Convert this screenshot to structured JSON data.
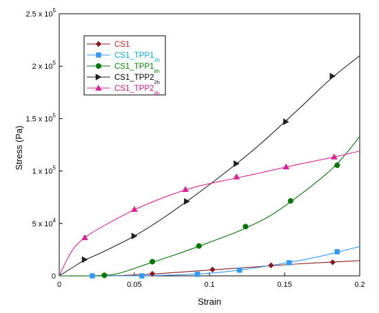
{
  "chart_data": {
    "type": "line",
    "title": "",
    "xlabel": "Strain",
    "ylabel": "Stress (Pa)",
    "xlim": [
      0,
      0.2
    ],
    "ylim": [
      0,
      250000
    ],
    "grid": false,
    "legend_position": "top-left",
    "x_ticks": [
      {
        "value": 0,
        "label": "0"
      },
      {
        "value": 0.05,
        "label": "0.05"
      },
      {
        "value": 0.1,
        "label": "0.1"
      },
      {
        "value": 0.15,
        "label": "0.15"
      },
      {
        "value": 0.2,
        "label": "0.2"
      }
    ],
    "y_ticks": [
      {
        "value": 0,
        "label": "0",
        "mantissa": "",
        "exp": ""
      },
      {
        "value": 50000,
        "label": "5 x 10",
        "mantissa": "5 x 10",
        "exp": "4"
      },
      {
        "value": 100000,
        "label": "1 x 10",
        "mantissa": "1 x 10",
        "exp": "5"
      },
      {
        "value": 150000,
        "label": "1.5 x 10",
        "mantissa": "1.5 x 10",
        "exp": "5"
      },
      {
        "value": 200000,
        "label": "2 x 10",
        "mantissa": "2 x 10",
        "exp": "5"
      },
      {
        "value": 250000,
        "label": "2.5 x 10",
        "mantissa": "2.5 x 10",
        "exp": "5"
      }
    ],
    "series": [
      {
        "name": "CS1",
        "name_main": "CS1",
        "name_sub": "",
        "color": "#8b1a1a",
        "text_color": "#d42020",
        "marker": "diamond",
        "curve_x": [
          0,
          0.02,
          0.04,
          0.06,
          0.08,
          0.1,
          0.12,
          0.14,
          0.16,
          0.18,
          0.2
        ],
        "curve_y": [
          0,
          0,
          300,
          1500,
          3500,
          5500,
          7500,
          9500,
          11500,
          13000,
          14500
        ],
        "marker_x": [
          0.03,
          0.062,
          0.102,
          0.141,
          0.182
        ],
        "marker_y": [
          500,
          2000,
          6000,
          10000,
          13000
        ]
      },
      {
        "name": "CS1_TPP1 2h",
        "name_main": "CS1_TPP1",
        "name_sub": "2h",
        "color": "#3399ff",
        "text_color": "#00aadd",
        "marker": "square",
        "curve_x": [
          0,
          0.04,
          0.07,
          0.1,
          0.12,
          0.15,
          0.17,
          0.185,
          0.2
        ],
        "curve_y": [
          0,
          0,
          500,
          2500,
          5500,
          12000,
          17500,
          22500,
          28000
        ],
        "marker_x": [
          0.022,
          0.055,
          0.092,
          0.12,
          0.153,
          0.185
        ],
        "marker_y": [
          0,
          0,
          1500,
          5500,
          12500,
          23000
        ]
      },
      {
        "name": "CS1_TPP1 8h",
        "name_main": "CS1_TPP1",
        "name_sub": "8h",
        "color": "#007700",
        "text_color": "#008800",
        "marker": "circle",
        "curve_x": [
          0,
          0.02,
          0.03,
          0.04,
          0.06,
          0.08,
          0.1,
          0.12,
          0.14,
          0.16,
          0.18,
          0.19,
          0.2
        ],
        "curve_y": [
          0,
          0,
          500,
          2500,
          12000,
          21500,
          32000,
          43000,
          57000,
          77000,
          100000,
          115000,
          133000
        ],
        "marker_x": [
          0.03,
          0.062,
          0.093,
          0.124,
          0.154,
          0.185
        ],
        "marker_y": [
          500,
          13500,
          28500,
          47000,
          71500,
          105500
        ]
      },
      {
        "name": "CS1_TPP2 2h",
        "name_main": "CS1_TPP2",
        "name_sub": "2h",
        "color": "#222222",
        "text_color": "#000000",
        "marker": "right-triangle",
        "curve_x": [
          0,
          0.01,
          0.017,
          0.03,
          0.05,
          0.07,
          0.1,
          0.13,
          0.16,
          0.18,
          0.2
        ],
        "curve_y": [
          0,
          9000,
          15000,
          23500,
          38000,
          56000,
          87000,
          121000,
          160000,
          187000,
          210000
        ],
        "marker_x": [
          0.017,
          0.05,
          0.085,
          0.118,
          0.151,
          0.182
        ],
        "marker_y": [
          15500,
          38000,
          71000,
          107000,
          147000,
          190500
        ]
      },
      {
        "name": "CS1_TPP2 8h",
        "name_main": "CS1_TPP2",
        "name_sub": "8h",
        "color": "#dd2299",
        "text_color": "#cc1188",
        "marker": "triangle",
        "curve_x": [
          0,
          0.005,
          0.01,
          0.017,
          0.03,
          0.05,
          0.07,
          0.09,
          0.11,
          0.13,
          0.15,
          0.17,
          0.185,
          0.2
        ],
        "curve_y": [
          0,
          15000,
          27000,
          36500,
          48000,
          63000,
          75000,
          84500,
          91000,
          97000,
          103500,
          109500,
          114000,
          119000
        ],
        "marker_x": [
          0.017,
          0.05,
          0.084,
          0.118,
          0.151,
          0.183
        ],
        "marker_y": [
          36500,
          63500,
          82500,
          94500,
          104000,
          113500
        ]
      }
    ]
  }
}
